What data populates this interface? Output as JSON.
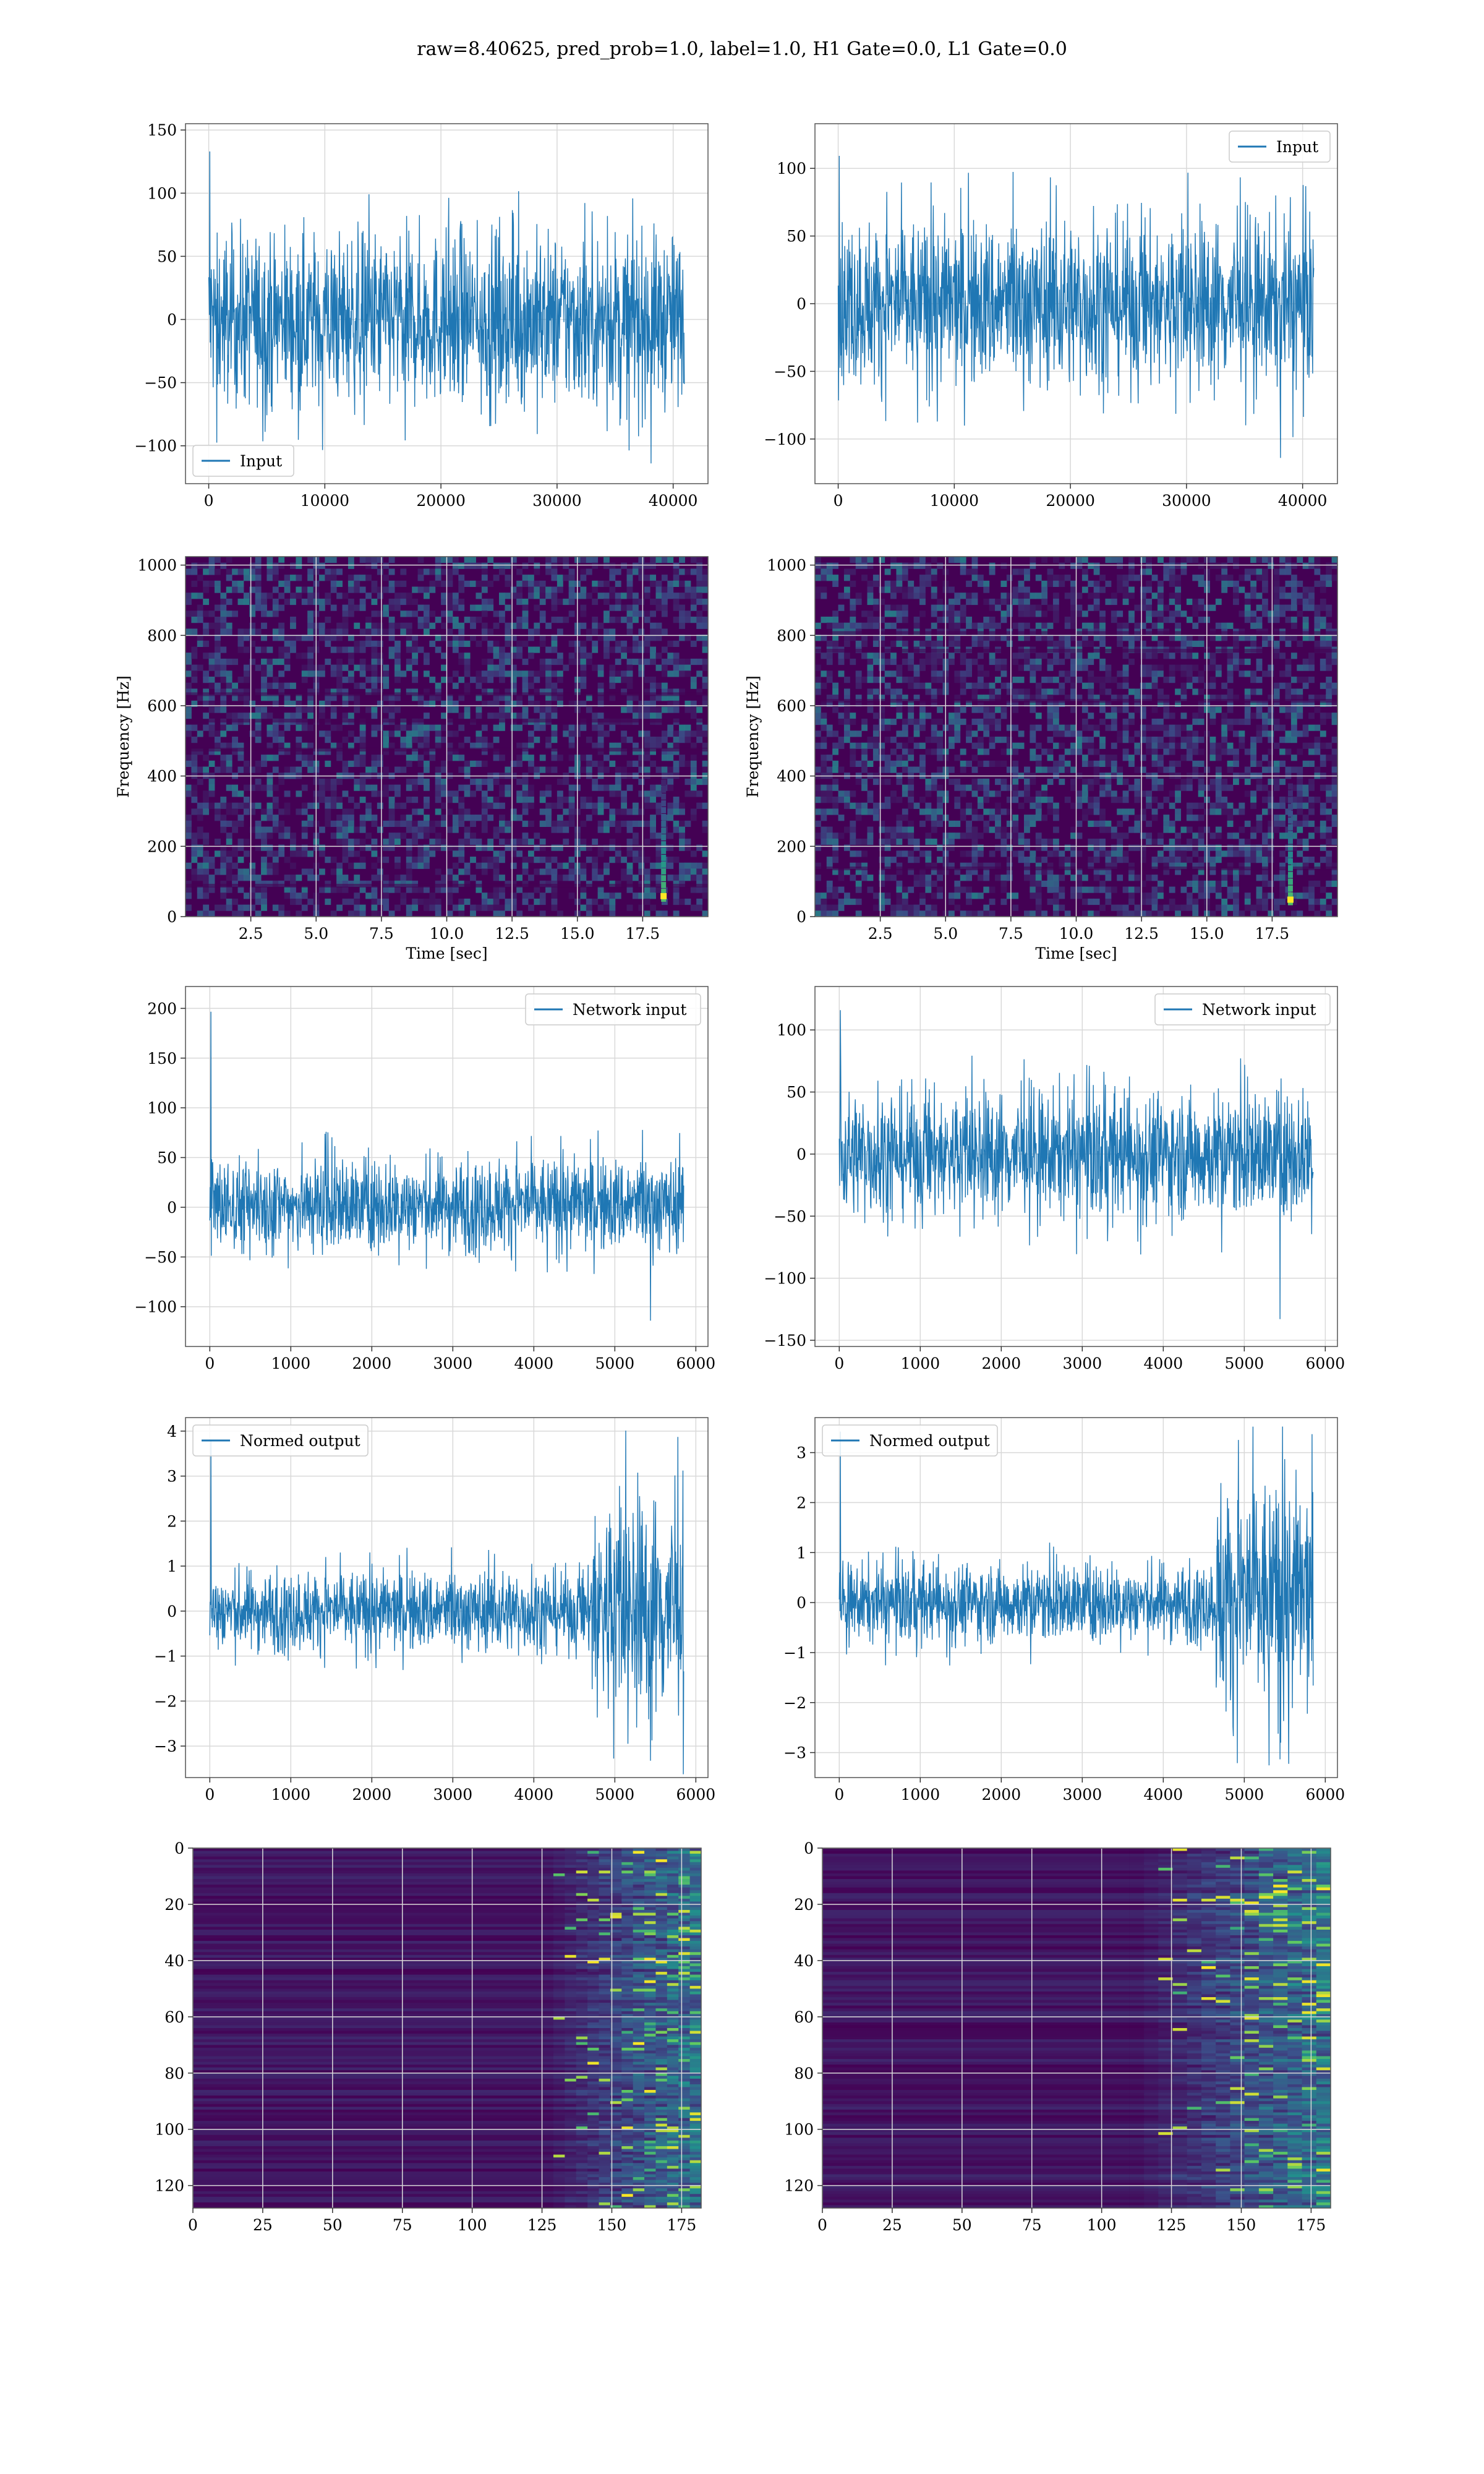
{
  "figure": {
    "title": "raw=8.40625, pred_prob=1.0, label=1.0, H1 Gate=0.0, L1 Gate=0.0"
  },
  "colors": {
    "line": "#1f77b4",
    "viridis_dark": "#440154",
    "viridis_mid": "#21918c",
    "viridis_bright": "#fde725",
    "grid": "#d9d9d9"
  },
  "chart_data": [
    {
      "id": "input-left",
      "type": "line",
      "title": "",
      "xlabel": "",
      "ylabel": "",
      "xlim": [
        -2000,
        43000
      ],
      "ylim": [
        -130,
        155
      ],
      "xticks": [
        0,
        10000,
        20000,
        30000,
        40000
      ],
      "yticks": [
        -100,
        -50,
        0,
        50,
        100,
        150
      ],
      "grid": true,
      "legend": "lower-left",
      "series": [
        {
          "name": "Input",
          "x_range": [
            0,
            40960
          ],
          "band": [
            -60,
            60
          ],
          "extremes": [
            -120,
            140
          ]
        }
      ]
    },
    {
      "id": "input-right",
      "type": "line",
      "title": "",
      "xlabel": "",
      "ylabel": "",
      "xlim": [
        -2000,
        43000
      ],
      "ylim": [
        -133,
        133
      ],
      "xticks": [
        0,
        10000,
        20000,
        30000,
        40000
      ],
      "yticks": [
        -100,
        -50,
        0,
        50,
        100
      ],
      "grid": true,
      "legend": "upper-right",
      "series": [
        {
          "name": "Input",
          "x_range": [
            0,
            40960
          ],
          "band": [
            -55,
            55
          ],
          "extremes": [
            -120,
            115
          ]
        }
      ]
    },
    {
      "id": "spectrogram-left",
      "type": "heatmap",
      "title": "",
      "xlabel": "Time [sec]",
      "ylabel": "Frequency [Hz]",
      "xlim": [
        0,
        20
      ],
      "ylim": [
        0,
        1024
      ],
      "xticks": [
        2.5,
        5.0,
        7.5,
        10.0,
        12.5,
        15.0,
        17.5
      ],
      "yticks": [
        0,
        200,
        400,
        600,
        800,
        1000
      ],
      "grid": true,
      "hotspot": {
        "time": 18.3,
        "freq": 60
      }
    },
    {
      "id": "spectrogram-right",
      "type": "heatmap",
      "title": "",
      "xlabel": "Time [sec]",
      "ylabel": "Frequency [Hz]",
      "xlim": [
        0,
        20
      ],
      "ylim": [
        0,
        1024
      ],
      "xticks": [
        2.5,
        5.0,
        7.5,
        10.0,
        12.5,
        15.0,
        17.5
      ],
      "yticks": [
        0,
        200,
        400,
        600,
        800,
        1000
      ],
      "grid": true,
      "hotspot": {
        "time": 18.2,
        "freq": 50
      }
    },
    {
      "id": "network-left",
      "type": "line",
      "title": "",
      "xlabel": "",
      "ylabel": "",
      "xlim": [
        -300,
        6150
      ],
      "ylim": [
        -140,
        222
      ],
      "xticks": [
        0,
        1000,
        2000,
        3000,
        4000,
        5000,
        6000
      ],
      "yticks": [
        -100,
        -50,
        0,
        50,
        100,
        150,
        200
      ],
      "grid": true,
      "legend": "upper-right",
      "series": [
        {
          "name": "Network input",
          "x_range": [
            0,
            5850
          ],
          "band": [
            -40,
            45
          ],
          "extremes": [
            -120,
            207
          ]
        }
      ]
    },
    {
      "id": "network-right",
      "type": "line",
      "title": "",
      "xlabel": "",
      "ylabel": "",
      "xlim": [
        -300,
        6150
      ],
      "ylim": [
        -155,
        135
      ],
      "xticks": [
        0,
        1000,
        2000,
        3000,
        4000,
        5000,
        6000
      ],
      "yticks": [
        -150,
        -100,
        -50,
        0,
        50,
        100
      ],
      "grid": true,
      "legend": "upper-right",
      "series": [
        {
          "name": "Network input",
          "x_range": [
            0,
            5850
          ],
          "band": [
            -45,
            45
          ],
          "extremes": [
            -140,
            122
          ]
        }
      ]
    },
    {
      "id": "normed-left",
      "type": "line",
      "title": "",
      "xlabel": "",
      "ylabel": "",
      "xlim": [
        -300,
        6150
      ],
      "ylim": [
        -3.7,
        4.3
      ],
      "xticks": [
        0,
        1000,
        2000,
        3000,
        4000,
        5000,
        6000
      ],
      "yticks": [
        -3,
        -2,
        -1,
        0,
        1,
        2,
        3,
        4
      ],
      "grid": true,
      "legend": "upper-left",
      "series": [
        {
          "name": "Normed output",
          "x_range": [
            0,
            5850
          ],
          "band": [
            -0.8,
            0.8
          ],
          "burst_from": 4700,
          "burst_band": [
            -2.2,
            2.3
          ],
          "extremes": [
            -3.5,
            4.0
          ]
        }
      ]
    },
    {
      "id": "normed-right",
      "type": "line",
      "title": "",
      "xlabel": "",
      "ylabel": "",
      "xlim": [
        -300,
        6150
      ],
      "ylim": [
        -3.5,
        3.7
      ],
      "xticks": [
        0,
        1000,
        2000,
        3000,
        4000,
        5000,
        6000
      ],
      "yticks": [
        -3,
        -2,
        -1,
        0,
        1,
        2,
        3
      ],
      "grid": true,
      "legend": "upper-left",
      "series": [
        {
          "name": "Normed output",
          "x_range": [
            0,
            5850
          ],
          "band": [
            -0.7,
            0.7
          ],
          "burst_from": 4650,
          "burst_band": [
            -2.0,
            2.2
          ],
          "extremes": [
            -3.3,
            3.6
          ]
        }
      ]
    },
    {
      "id": "feature-left",
      "type": "heatmap",
      "title": "",
      "xlabel": "",
      "ylabel": "",
      "xlim": [
        0,
        182
      ],
      "ylim": [
        128,
        0
      ],
      "xticks": [
        0,
        25,
        50,
        75,
        100,
        125,
        150,
        175
      ],
      "yticks": [
        0,
        20,
        40,
        60,
        80,
        100,
        120
      ],
      "grid": true,
      "activity_from": 125
    },
    {
      "id": "feature-right",
      "type": "heatmap",
      "title": "",
      "xlabel": "",
      "ylabel": "",
      "xlim": [
        0,
        182
      ],
      "ylim": [
        128,
        0
      ],
      "xticks": [
        0,
        25,
        50,
        75,
        100,
        125,
        150,
        175
      ],
      "yticks": [
        0,
        20,
        40,
        60,
        80,
        100,
        120
      ],
      "grid": true,
      "activity_from": 110
    }
  ]
}
